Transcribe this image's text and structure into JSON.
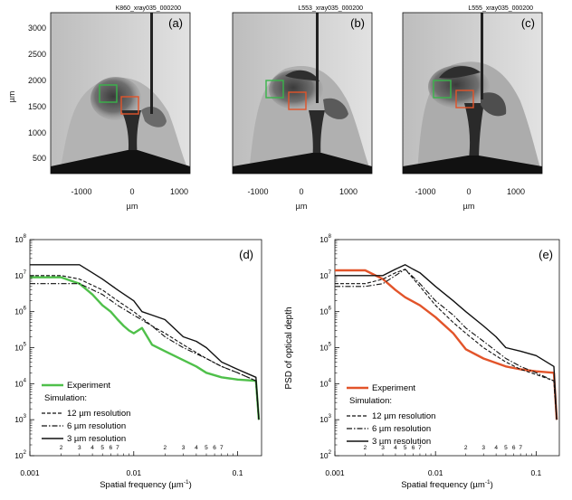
{
  "figure": {
    "top_panels": [
      {
        "id": "a",
        "label": "(a)",
        "caption": "K860_xray035_000200"
      },
      {
        "id": "b",
        "label": "(b)",
        "caption": "L553_xray035_000200"
      },
      {
        "id": "c",
        "label": "(c)",
        "caption": "L555_xray035_000200"
      }
    ],
    "top_axes": {
      "ylabel": "µm",
      "xlabel": "µm",
      "yticks": [
        "500",
        "1000",
        "1500",
        "2000",
        "2500",
        "3000"
      ],
      "xticks": [
        "-1000",
        "0",
        "1000"
      ]
    },
    "bottom_panels": [
      {
        "id": "d",
        "label": "(d)",
        "exp_color": "#4fc04a"
      },
      {
        "id": "e",
        "label": "(e)",
        "exp_color": "#e2542a",
        "ylabel": "PSD of optical depth"
      }
    ],
    "bottom_axes": {
      "xlabel": "Spatial frequency (µm",
      "xlabel_sup": "-1",
      "xlabel_end": ")",
      "yticks": [
        {
          "m": "10",
          "e": "2"
        },
        {
          "m": "10",
          "e": "3"
        },
        {
          "m": "10",
          "e": "4"
        },
        {
          "m": "10",
          "e": "5"
        },
        {
          "m": "10",
          "e": "6"
        },
        {
          "m": "10",
          "e": "7"
        },
        {
          "m": "10",
          "e": "8"
        }
      ],
      "xmajor": [
        "0.001",
        "0.01",
        "0.1"
      ],
      "xminor": [
        "2",
        "3",
        "4",
        "5",
        "6",
        "7",
        "2",
        "3",
        "4",
        "5",
        "6",
        "7"
      ]
    },
    "legend": {
      "experiment": "Experiment",
      "simulation": "Simulation:",
      "res12": "12 µm resolution",
      "res6": "6 µm resolution",
      "res3": "3 µm resolution"
    }
  },
  "chart_data": [
    {
      "panel": "d",
      "type": "line",
      "title": "",
      "xlabel": "Spatial frequency (µm-1)",
      "ylabel": "",
      "xscale": "log",
      "yscale": "log",
      "xlim": [
        0.001,
        0.17
      ],
      "ylim": [
        100,
        100000000
      ],
      "series": [
        {
          "name": "Experiment",
          "style": "solid-green",
          "x": [
            0.001,
            0.002,
            0.003,
            0.004,
            0.005,
            0.006,
            0.007,
            0.008,
            0.009,
            0.01,
            0.012,
            0.015,
            0.02,
            0.03,
            0.04,
            0.05,
            0.07,
            0.1,
            0.15,
            0.16
          ],
          "y": [
            9000000,
            9000000,
            6000000,
            3000000,
            1500000,
            1000000,
            600000,
            400000,
            300000,
            250000,
            350000,
            120000,
            80000,
            45000,
            30000,
            20000,
            15000,
            13000,
            12000,
            1000
          ]
        },
        {
          "name": "12 µm resolution",
          "style": "dashed",
          "x": [
            0.001,
            0.002,
            0.003,
            0.005,
            0.007,
            0.01,
            0.015,
            0.02,
            0.03,
            0.05,
            0.07,
            0.1,
            0.15,
            0.16
          ],
          "y": [
            10000000,
            10000000,
            8000000,
            4000000,
            2000000,
            1000000,
            400000,
            250000,
            120000,
            50000,
            30000,
            20000,
            12000,
            1000
          ]
        },
        {
          "name": "6 µm resolution",
          "style": "dashdot",
          "x": [
            0.001,
            0.002,
            0.003,
            0.005,
            0.007,
            0.01,
            0.015,
            0.02,
            0.03,
            0.05,
            0.07,
            0.1,
            0.15,
            0.16
          ],
          "y": [
            6000000,
            6000000,
            6000000,
            3000000,
            1500000,
            800000,
            400000,
            200000,
            100000,
            50000,
            30000,
            20000,
            12000,
            1000
          ]
        },
        {
          "name": "3 µm resolution",
          "style": "solid-black",
          "x": [
            0.001,
            0.002,
            0.003,
            0.004,
            0.005,
            0.007,
            0.01,
            0.012,
            0.015,
            0.02,
            0.03,
            0.04,
            0.05,
            0.07,
            0.1,
            0.15,
            0.16
          ],
          "y": [
            20000000,
            20000000,
            20000000,
            12000000,
            8000000,
            4000000,
            2000000,
            1000000,
            800000,
            600000,
            200000,
            150000,
            100000,
            40000,
            25000,
            15000,
            1000
          ]
        }
      ]
    },
    {
      "panel": "e",
      "type": "line",
      "title": "",
      "xlabel": "Spatial frequency (µm-1)",
      "ylabel": "PSD of optical depth",
      "xscale": "log",
      "yscale": "log",
      "xlim": [
        0.001,
        0.17
      ],
      "ylim": [
        100,
        100000000
      ],
      "series": [
        {
          "name": "Experiment",
          "style": "solid-orange",
          "x": [
            0.001,
            0.002,
            0.003,
            0.004,
            0.005,
            0.007,
            0.01,
            0.015,
            0.02,
            0.03,
            0.05,
            0.07,
            0.1,
            0.15,
            0.16
          ],
          "y": [
            14000000,
            14000000,
            8000000,
            4000000,
            2500000,
            1500000,
            700000,
            250000,
            90000,
            50000,
            30000,
            25000,
            22000,
            20000,
            1000
          ]
        },
        {
          "name": "12 µm resolution",
          "style": "dashed",
          "x": [
            0.001,
            0.002,
            0.003,
            0.004,
            0.005,
            0.007,
            0.01,
            0.015,
            0.02,
            0.03,
            0.05,
            0.07,
            0.1,
            0.15,
            0.16
          ],
          "y": [
            6000000,
            6000000,
            8000000,
            12000000,
            15000000,
            5000000,
            1500000,
            500000,
            250000,
            100000,
            40000,
            25000,
            18000,
            12000,
            1000
          ]
        },
        {
          "name": "6 µm resolution",
          "style": "dashdot",
          "x": [
            0.001,
            0.002,
            0.003,
            0.004,
            0.005,
            0.007,
            0.01,
            0.015,
            0.02,
            0.03,
            0.05,
            0.07,
            0.1,
            0.15,
            0.16
          ],
          "y": [
            5000000,
            5000000,
            6000000,
            10000000,
            15000000,
            6000000,
            2000000,
            800000,
            350000,
            150000,
            50000,
            30000,
            20000,
            12000,
            1000
          ]
        },
        {
          "name": "3 µm resolution",
          "style": "solid-black",
          "x": [
            0.001,
            0.002,
            0.003,
            0.004,
            0.005,
            0.006,
            0.007,
            0.01,
            0.015,
            0.02,
            0.03,
            0.04,
            0.05,
            0.07,
            0.1,
            0.15,
            0.16
          ],
          "y": [
            10000000,
            10000000,
            10000000,
            15000000,
            20000000,
            15000000,
            12000000,
            5000000,
            2000000,
            1000000,
            400000,
            200000,
            100000,
            80000,
            60000,
            30000,
            1000
          ]
        }
      ]
    }
  ]
}
